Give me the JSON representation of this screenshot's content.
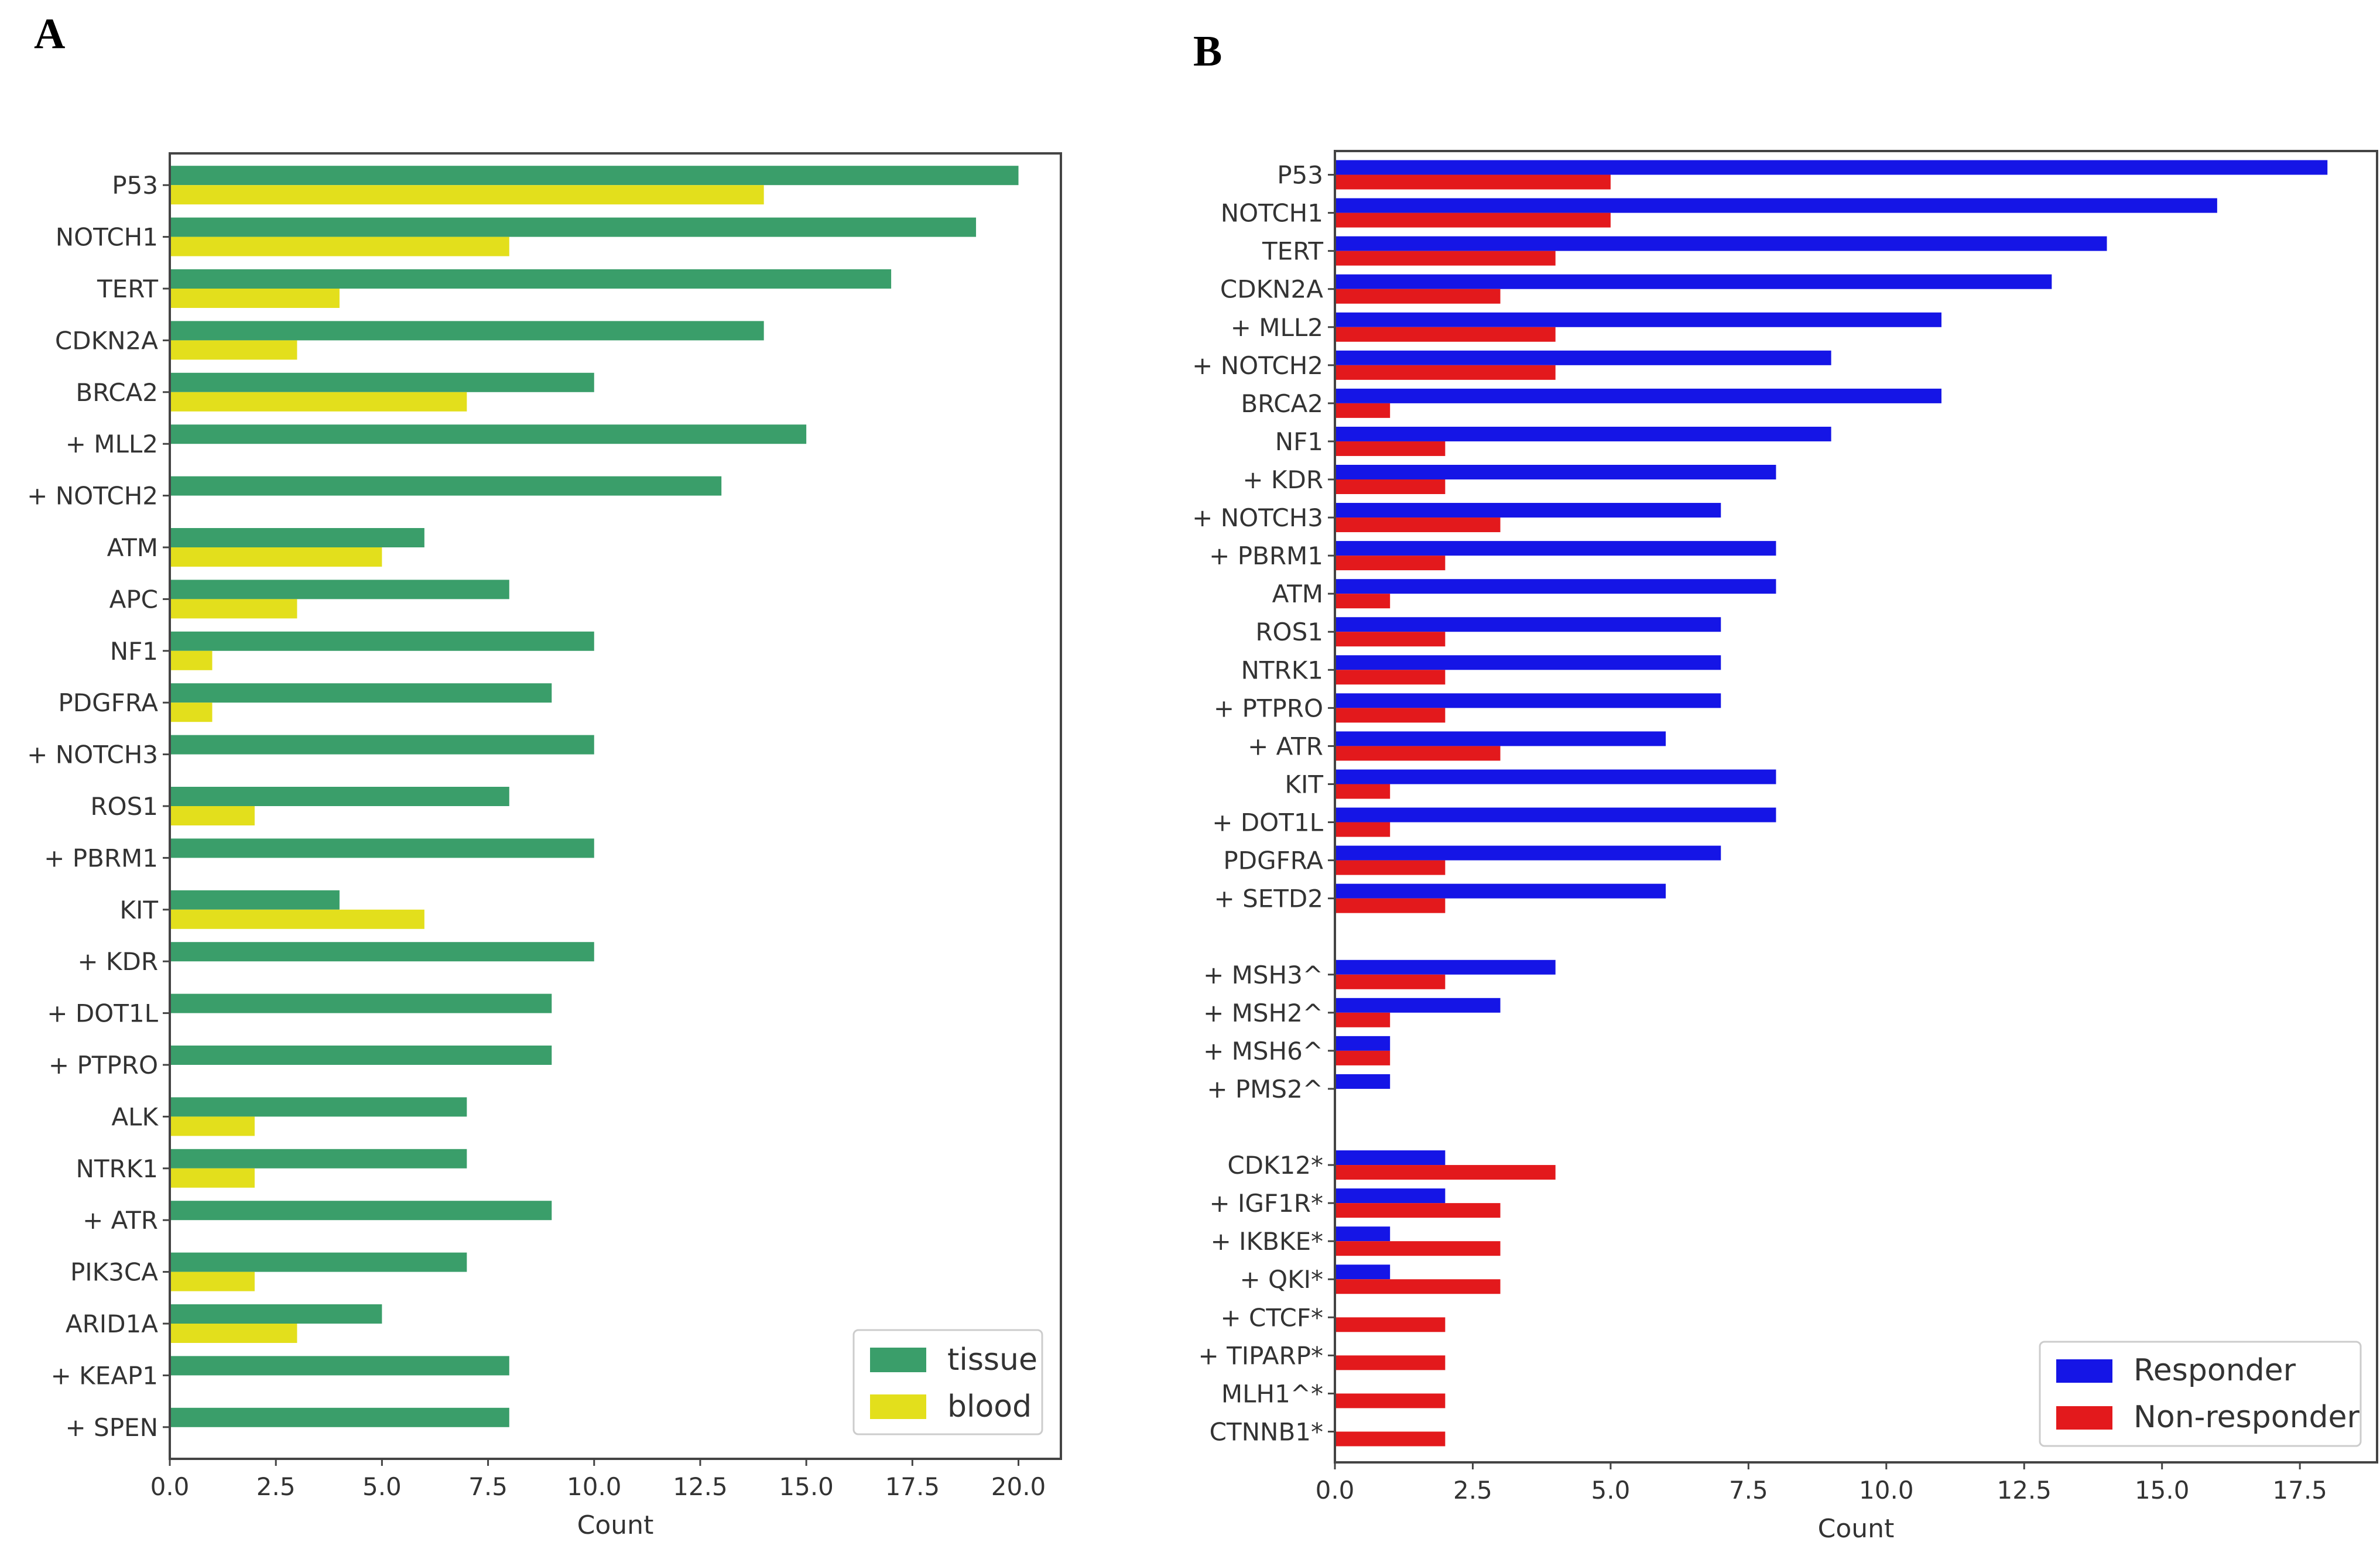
{
  "chart_data": [
    {
      "panel": "A",
      "type": "bar",
      "orientation": "horizontal",
      "xlabel": "Count",
      "ylabel": "",
      "xlim": [
        0,
        21
      ],
      "xticks": [
        "0.0",
        "2.5",
        "5.0",
        "7.5",
        "10.0",
        "12.5",
        "15.0",
        "17.5",
        "20.0"
      ],
      "legend_position": "lower-right",
      "categories": [
        "P53",
        "NOTCH1",
        "TERT",
        "CDKN2A",
        "BRCA2",
        "+ MLL2",
        "+ NOTCH2",
        "ATM",
        "APC",
        "NF1",
        "PDGFRA",
        "+ NOTCH3",
        "ROS1",
        "+ PBRM1",
        "KIT",
        "+ KDR",
        "+ DOT1L",
        "+ PTPRO",
        "ALK",
        "NTRK1",
        "+ ATR",
        "PIK3CA",
        "ARID1A",
        "+ KEAP1",
        "+ SPEN"
      ],
      "series": [
        {
          "name": "tissue",
          "color": "#3a9e6a",
          "values": [
            20,
            19,
            17,
            14,
            10,
            15,
            13,
            6,
            8,
            10,
            9,
            10,
            8,
            10,
            4,
            10,
            9,
            9,
            7,
            7,
            9,
            7,
            5,
            8,
            8
          ]
        },
        {
          "name": "blood",
          "color": "#e3df1c",
          "values": [
            14,
            8,
            4,
            3,
            7,
            0,
            0,
            5,
            3,
            1,
            1,
            0,
            2,
            0,
            6,
            0,
            0,
            0,
            2,
            2,
            0,
            2,
            3,
            0,
            0
          ]
        }
      ]
    },
    {
      "panel": "B",
      "type": "bar",
      "orientation": "horizontal",
      "xlabel": "Count",
      "ylabel": "",
      "xlim": [
        0,
        18.9
      ],
      "xticks": [
        "0.0",
        "2.5",
        "5.0",
        "7.5",
        "10.0",
        "12.5",
        "15.0",
        "17.5"
      ],
      "legend_position": "lower-right",
      "categories": [
        "P53",
        "NOTCH1",
        "TERT",
        "CDKN2A",
        "+ MLL2",
        "+ NOTCH2",
        "BRCA2",
        "NF1",
        "+ KDR",
        "+ NOTCH3",
        "+ PBRM1",
        "ATM",
        "ROS1",
        "NTRK1",
        "+ PTPRO",
        "+ ATR",
        "KIT",
        "+ DOT1L",
        "PDGFRA",
        "+ SETD2",
        "",
        "+ MSH3^",
        "+ MSH2^",
        "+ MSH6^",
        "+ PMS2^",
        "",
        "CDK12*",
        "+ IGF1R*",
        "+ IKBKE*",
        "+ QKI*",
        "+ CTCF*",
        "+ TIPARP*",
        "MLH1^*",
        "CTNNB1*"
      ],
      "series": [
        {
          "name": "Responder",
          "color": "#1515e6",
          "values": [
            18,
            16,
            14,
            13,
            11,
            9,
            11,
            9,
            8,
            7,
            8,
            8,
            7,
            7,
            7,
            6,
            8,
            8,
            7,
            6,
            0,
            4,
            3,
            1,
            1,
            0,
            2,
            2,
            1,
            1,
            0,
            0,
            0,
            0
          ]
        },
        {
          "name": "Non-responder",
          "color": "#e3191c",
          "values": [
            5,
            5,
            4,
            3,
            4,
            4,
            1,
            2,
            2,
            3,
            2,
            1,
            2,
            2,
            2,
            3,
            1,
            1,
            2,
            2,
            0,
            2,
            1,
            1,
            0,
            0,
            4,
            3,
            3,
            3,
            2,
            2,
            2,
            2
          ]
        }
      ]
    }
  ]
}
